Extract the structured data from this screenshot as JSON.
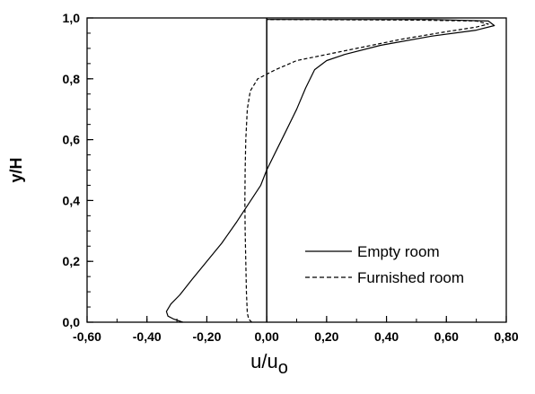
{
  "chart_data": {
    "type": "line",
    "title": "",
    "xlabel": "u/u",
    "xlabel_subscript": "o",
    "ylabel": "y/H",
    "xlim": [
      -0.6,
      0.8
    ],
    "ylim": [
      0.0,
      1.0
    ],
    "x_major_ticks": [
      -0.6,
      -0.4,
      -0.2,
      0.0,
      0.2,
      0.4,
      0.6,
      0.8
    ],
    "x_tick_labels": [
      "-0,60",
      "-0,40",
      "-0,20",
      "0,00",
      "0,20",
      "0,40",
      "0,60",
      "0,80"
    ],
    "x_minor_step": 0.1,
    "y_major_ticks": [
      0.0,
      0.2,
      0.4,
      0.6,
      0.8,
      1.0
    ],
    "y_tick_labels": [
      "0,0",
      "0,2",
      "0,4",
      "0,6",
      "0,8",
      "1,0"
    ],
    "y_minor_step": 0.05,
    "grid": false,
    "legend_position": "bottom-right",
    "vertical_reference_line_x": 0.0,
    "series": [
      {
        "name": "Empty room",
        "style": "solid",
        "points": [
          [
            -0.28,
            0.0
          ],
          [
            -0.31,
            0.01
          ],
          [
            -0.33,
            0.02
          ],
          [
            -0.335,
            0.035
          ],
          [
            -0.32,
            0.06
          ],
          [
            -0.29,
            0.09
          ],
          [
            -0.25,
            0.14
          ],
          [
            -0.2,
            0.2
          ],
          [
            -0.15,
            0.26
          ],
          [
            -0.1,
            0.33
          ],
          [
            -0.06,
            0.39
          ],
          [
            -0.02,
            0.45
          ],
          [
            0.0,
            0.5
          ],
          [
            0.03,
            0.56
          ],
          [
            0.06,
            0.62
          ],
          [
            0.1,
            0.7
          ],
          [
            0.13,
            0.77
          ],
          [
            0.16,
            0.83
          ],
          [
            0.2,
            0.86
          ],
          [
            0.26,
            0.88
          ],
          [
            0.38,
            0.91
          ],
          [
            0.55,
            0.94
          ],
          [
            0.7,
            0.96
          ],
          [
            0.76,
            0.975
          ],
          [
            0.74,
            0.99
          ],
          [
            0.55,
            0.995
          ],
          [
            0.0,
            0.995
          ]
        ]
      },
      {
        "name": "Furnished room",
        "style": "dashed",
        "points": [
          [
            -0.05,
            0.0
          ],
          [
            -0.06,
            0.01
          ],
          [
            -0.065,
            0.03
          ],
          [
            -0.068,
            0.1
          ],
          [
            -0.07,
            0.2
          ],
          [
            -0.072,
            0.3
          ],
          [
            -0.073,
            0.4
          ],
          [
            -0.072,
            0.5
          ],
          [
            -0.07,
            0.6
          ],
          [
            -0.065,
            0.7
          ],
          [
            -0.055,
            0.76
          ],
          [
            -0.03,
            0.8
          ],
          [
            0.0,
            0.815
          ],
          [
            0.03,
            0.83
          ],
          [
            0.1,
            0.86
          ],
          [
            0.2,
            0.88
          ],
          [
            0.3,
            0.9
          ],
          [
            0.45,
            0.93
          ],
          [
            0.6,
            0.955
          ],
          [
            0.7,
            0.97
          ],
          [
            0.74,
            0.98
          ],
          [
            0.7,
            0.99
          ],
          [
            0.5,
            0.993
          ],
          [
            0.0,
            0.995
          ]
        ]
      }
    ]
  }
}
